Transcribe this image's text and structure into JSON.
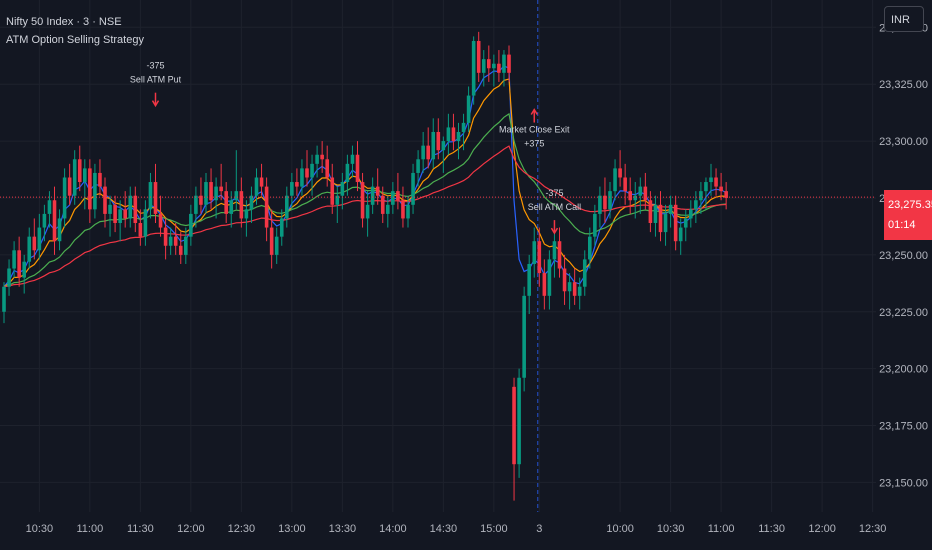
{
  "legend": {
    "symbol": "Nifty 50 Index · 3 · NSE",
    "strategy": "ATM Option Selling Strategy"
  },
  "currency": "INR",
  "last_price": {
    "value": "23,275.35",
    "countdown": "01:14"
  },
  "chart_data": {
    "type": "candlestick",
    "ylim": [
      23137,
      23362
    ],
    "y_ticks": [
      "23,350.00",
      "23,325.00",
      "23,300.00",
      "23,275.00",
      "23,250.00",
      "23,225.00",
      "23,200.00",
      "23,175.00",
      "23,150.00"
    ],
    "y_tick_values": [
      23350,
      23325,
      23300,
      23275,
      23250,
      23225,
      23200,
      23175,
      23150
    ],
    "x_tick_labels": [
      "10:30",
      "11:00",
      "11:30",
      "12:00",
      "12:30",
      "13:00",
      "13:30",
      "14:00",
      "14:30",
      "15:00",
      "3",
      "10:00",
      "10:30",
      "11:00",
      "11:30",
      "12:00",
      "12:30"
    ],
    "x_tick_index": [
      7,
      17,
      27,
      37,
      47,
      57,
      67,
      77,
      87,
      97,
      106,
      122,
      132,
      142,
      152,
      162,
      172
    ],
    "candles": [
      [
        23225,
        23238,
        23220,
        23236
      ],
      [
        23236,
        23248,
        23232,
        23244
      ],
      [
        23244,
        23256,
        23240,
        23252
      ],
      [
        23252,
        23258,
        23236,
        23240
      ],
      [
        23240,
        23250,
        23233,
        23247
      ],
      [
        23247,
        23262,
        23244,
        23258
      ],
      [
        23258,
        23266,
        23248,
        23252
      ],
      [
        23252,
        23268,
        23248,
        23262
      ],
      [
        23262,
        23272,
        23256,
        23268
      ],
      [
        23268,
        23278,
        23262,
        23274
      ],
      [
        23274,
        23280,
        23250,
        23256
      ],
      [
        23256,
        23270,
        23252,
        23266
      ],
      [
        23266,
        23288,
        23262,
        23284
      ],
      [
        23284,
        23290,
        23272,
        23276
      ],
      [
        23276,
        23296,
        23272,
        23292
      ],
      [
        23292,
        23298,
        23278,
        23282
      ],
      [
        23282,
        23292,
        23270,
        23288
      ],
      [
        23288,
        23292,
        23264,
        23270
      ],
      [
        23270,
        23290,
        23266,
        23286
      ],
      [
        23286,
        23292,
        23276,
        23280
      ],
      [
        23280,
        23284,
        23262,
        23268
      ],
      [
        23268,
        23276,
        23258,
        23272
      ],
      [
        23272,
        23276,
        23260,
        23264
      ],
      [
        23264,
        23274,
        23256,
        23270
      ],
      [
        23270,
        23278,
        23262,
        23266
      ],
      [
        23266,
        23280,
        23262,
        23276
      ],
      [
        23276,
        23280,
        23260,
        23264
      ],
      [
        23264,
        23270,
        23254,
        23258
      ],
      [
        23258,
        23274,
        23254,
        23270
      ],
      [
        23270,
        23286,
        23266,
        23282
      ],
      [
        23282,
        23290,
        23264,
        23268
      ],
      [
        23268,
        23276,
        23258,
        23262
      ],
      [
        23262,
        23266,
        23248,
        23254
      ],
      [
        23254,
        23262,
        23250,
        23258
      ],
      [
        23258,
        23264,
        23250,
        23254
      ],
      [
        23254,
        23260,
        23246,
        23250
      ],
      [
        23250,
        23262,
        23246,
        23258
      ],
      [
        23258,
        23272,
        23254,
        23268
      ],
      [
        23268,
        23280,
        23262,
        23276
      ],
      [
        23276,
        23284,
        23268,
        23272
      ],
      [
        23272,
        23286,
        23268,
        23282
      ],
      [
        23282,
        23288,
        23270,
        23274
      ],
      [
        23274,
        23284,
        23266,
        23280
      ],
      [
        23280,
        23290,
        23274,
        23278
      ],
      [
        23278,
        23282,
        23264,
        23268
      ],
      [
        23268,
        23278,
        23262,
        23274
      ],
      [
        23274,
        23296,
        23270,
        23278
      ],
      [
        23278,
        23284,
        23262,
        23266
      ],
      [
        23266,
        23274,
        23258,
        23270
      ],
      [
        23270,
        23280,
        23264,
        23276
      ],
      [
        23276,
        23288,
        23272,
        23284
      ],
      [
        23284,
        23290,
        23276,
        23280
      ],
      [
        23280,
        23284,
        23256,
        23262
      ],
      [
        23262,
        23270,
        23244,
        23250
      ],
      [
        23250,
        23262,
        23246,
        23258
      ],
      [
        23258,
        23270,
        23254,
        23266
      ],
      [
        23266,
        23280,
        23262,
        23276
      ],
      [
        23276,
        23286,
        23270,
        23282
      ],
      [
        23282,
        23288,
        23276,
        23280
      ],
      [
        23280,
        23292,
        23276,
        23288
      ],
      [
        23288,
        23296,
        23280,
        23284
      ],
      [
        23284,
        23294,
        23276,
        23290
      ],
      [
        23290,
        23298,
        23284,
        23294
      ],
      [
        23294,
        23300,
        23286,
        23292
      ],
      [
        23292,
        23298,
        23280,
        23284
      ],
      [
        23284,
        23290,
        23268,
        23272
      ],
      [
        23272,
        23280,
        23264,
        23276
      ],
      [
        23276,
        23286,
        23270,
        23282
      ],
      [
        23282,
        23294,
        23276,
        23290
      ],
      [
        23290,
        23298,
        23284,
        23294
      ],
      [
        23294,
        23300,
        23278,
        23282
      ],
      [
        23282,
        23286,
        23262,
        23266
      ],
      [
        23266,
        23278,
        23258,
        23272
      ],
      [
        23272,
        23284,
        23268,
        23280
      ],
      [
        23280,
        23288,
        23272,
        23276
      ],
      [
        23276,
        23280,
        23264,
        23268
      ],
      [
        23268,
        23276,
        23262,
        23272
      ],
      [
        23272,
        23282,
        23268,
        23278
      ],
      [
        23278,
        23286,
        23270,
        23274
      ],
      [
        23274,
        23280,
        23262,
        23266
      ],
      [
        23266,
        23276,
        23262,
        23272
      ],
      [
        23272,
        23290,
        23268,
        23286
      ],
      [
        23286,
        23296,
        23280,
        23292
      ],
      [
        23292,
        23304,
        23286,
        23298
      ],
      [
        23298,
        23306,
        23288,
        23292
      ],
      [
        23292,
        23310,
        23288,
        23304
      ],
      [
        23304,
        23310,
        23292,
        23296
      ],
      [
        23296,
        23302,
        23286,
        23300
      ],
      [
        23300,
        23312,
        23294,
        23306
      ],
      [
        23306,
        23312,
        23296,
        23300
      ],
      [
        23300,
        23308,
        23292,
        23304
      ],
      [
        23304,
        23312,
        23296,
        23308
      ],
      [
        23308,
        23324,
        23304,
        23320
      ],
      [
        23320,
        23346,
        23316,
        23344
      ],
      [
        23344,
        23348,
        23326,
        23330
      ],
      [
        23330,
        23340,
        23324,
        23336
      ],
      [
        23336,
        23342,
        23326,
        23332
      ],
      [
        23332,
        23338,
        23324,
        23334
      ],
      [
        23334,
        23340,
        23326,
        23330
      ],
      [
        23330,
        23340,
        23324,
        23338
      ],
      [
        23338,
        23342,
        23326,
        23330
      ],
      [
        23192,
        23196,
        23142,
        23158
      ],
      [
        23158,
        23200,
        23152,
        23196
      ],
      [
        23196,
        23236,
        23190,
        23232
      ],
      [
        23232,
        23250,
        23224,
        23246
      ],
      [
        23246,
        23262,
        23240,
        23256
      ],
      [
        23256,
        23262,
        23236,
        23242
      ],
      [
        23242,
        23248,
        23226,
        23232
      ],
      [
        23232,
        23252,
        23226,
        23248
      ],
      [
        23248,
        23260,
        23240,
        23256
      ],
      [
        23256,
        23262,
        23240,
        23244
      ],
      [
        23244,
        23250,
        23228,
        23234
      ],
      [
        23234,
        23242,
        23226,
        23238
      ],
      [
        23238,
        23244,
        23228,
        23232
      ],
      [
        23232,
        23240,
        23226,
        23236
      ],
      [
        23236,
        23252,
        23232,
        23248
      ],
      [
        23248,
        23262,
        23244,
        23258
      ],
      [
        23258,
        23272,
        23254,
        23268
      ],
      [
        23268,
        23280,
        23262,
        23276
      ],
      [
        23276,
        23284,
        23264,
        23270
      ],
      [
        23270,
        23282,
        23266,
        23278
      ],
      [
        23278,
        23292,
        23274,
        23288
      ],
      [
        23288,
        23296,
        23280,
        23284
      ],
      [
        23284,
        23290,
        23272,
        23278
      ],
      [
        23278,
        23284,
        23268,
        23274
      ],
      [
        23274,
        23282,
        23266,
        23276
      ],
      [
        23276,
        23284,
        23268,
        23280
      ],
      [
        23280,
        23286,
        23270,
        23274
      ],
      [
        23274,
        23278,
        23260,
        23264
      ],
      [
        23264,
        23276,
        23258,
        23272
      ],
      [
        23272,
        23278,
        23256,
        23260
      ],
      [
        23260,
        23272,
        23254,
        23268
      ],
      [
        23268,
        23276,
        23262,
        23272
      ],
      [
        23272,
        23276,
        23252,
        23256
      ],
      [
        23256,
        23266,
        23250,
        23262
      ],
      [
        23262,
        23270,
        23256,
        23266
      ],
      [
        23266,
        23274,
        23262,
        23270
      ],
      [
        23270,
        23278,
        23264,
        23274
      ],
      [
        23274,
        23282,
        23268,
        23278
      ],
      [
        23278,
        23284,
        23270,
        23282
      ],
      [
        23282,
        23290,
        23276,
        23284
      ],
      [
        23284,
        23288,
        23276,
        23280
      ],
      [
        23280,
        23286,
        23274,
        23278
      ],
      [
        23278,
        23282,
        23270,
        23275
      ]
    ],
    "annotations": [
      {
        "lines": [
          "-375",
          "Sell ATM Put"
        ],
        "index": 30,
        "price": 23316,
        "arrow": "down"
      },
      {
        "lines": [
          "Market Close Exit",
          "+375"
        ],
        "index": 105,
        "price": 23302,
        "arrow": "up"
      },
      {
        "lines": [
          "-375",
          "Sell ATM Call"
        ],
        "index": 109,
        "price": 23260,
        "arrow": "down"
      }
    ],
    "series": [
      {
        "color": "#2962ff",
        "period": 5
      },
      {
        "color": "#ff9800",
        "period": 10
      },
      {
        "color": "#4caf50",
        "period": 25
      },
      {
        "color": "#f23645",
        "period": 50
      }
    ],
    "session_break_index": 106,
    "last_price": 23275.35,
    "colors": {
      "up": "#089981",
      "down": "#f23645"
    }
  }
}
